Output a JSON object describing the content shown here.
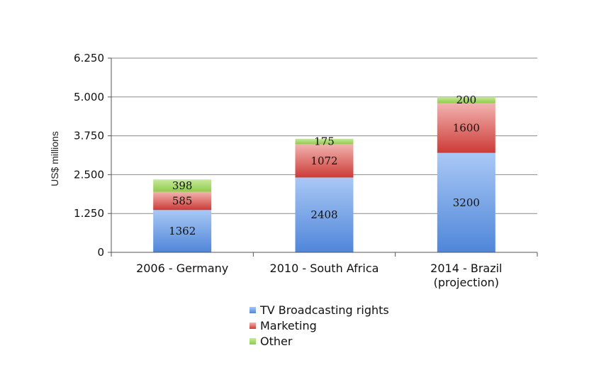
{
  "chart_data": {
    "type": "bar",
    "stacked": true,
    "title": "",
    "xlabel": "",
    "ylabel": "US$ millions",
    "ylim": [
      0,
      6250
    ],
    "yticks": [
      {
        "value": 0,
        "label": "0"
      },
      {
        "value": 1250,
        "label": "1.250"
      },
      {
        "value": 2500,
        "label": "2.500"
      },
      {
        "value": 3750,
        "label": "3.750"
      },
      {
        "value": 5000,
        "label": "5.000"
      },
      {
        "value": 6250,
        "label": "6.250"
      }
    ],
    "categories": [
      [
        "2006 - Germany"
      ],
      [
        "2010 - South Africa"
      ],
      [
        "2014 - Brazil",
        "(projection)"
      ]
    ],
    "series": [
      {
        "name": "TV Broadcasting rights",
        "values": [
          1362,
          2408,
          3200
        ],
        "color": "#4f86d9",
        "color_light": "#a9c8f5"
      },
      {
        "name": "Marketing",
        "values": [
          585,
          1072,
          1600
        ],
        "color": "#cc3b36",
        "color_light": "#f2b3b0"
      },
      {
        "name": "Other",
        "values": [
          398,
          175,
          200
        ],
        "color": "#8fcb4a",
        "color_light": "#c7e99c"
      }
    ],
    "grid": true,
    "legend": "bottom"
  }
}
